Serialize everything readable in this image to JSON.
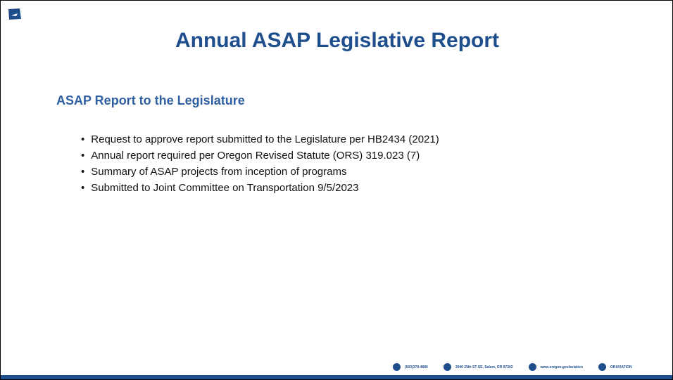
{
  "header": {
    "title": "Annual ASAP Legislative Report"
  },
  "section": {
    "title": "ASAP Report to the Legislature",
    "bullets": [
      "Request to approve report submitted to the Legislature per HB2434 (2021)",
      "Annual report required per Oregon Revised Statute (ORS) 319.023 (7)",
      "Summary of ASAP projects from inception of programs",
      "Submitted to Joint Committee on Transportation 9/5/2023"
    ]
  },
  "footer": {
    "contacts": [
      "(503)378-4880",
      "3040 25th ST SE, Salem, OR 97302",
      "www.oregon.gov/aviation",
      "ORAVIATION"
    ]
  }
}
